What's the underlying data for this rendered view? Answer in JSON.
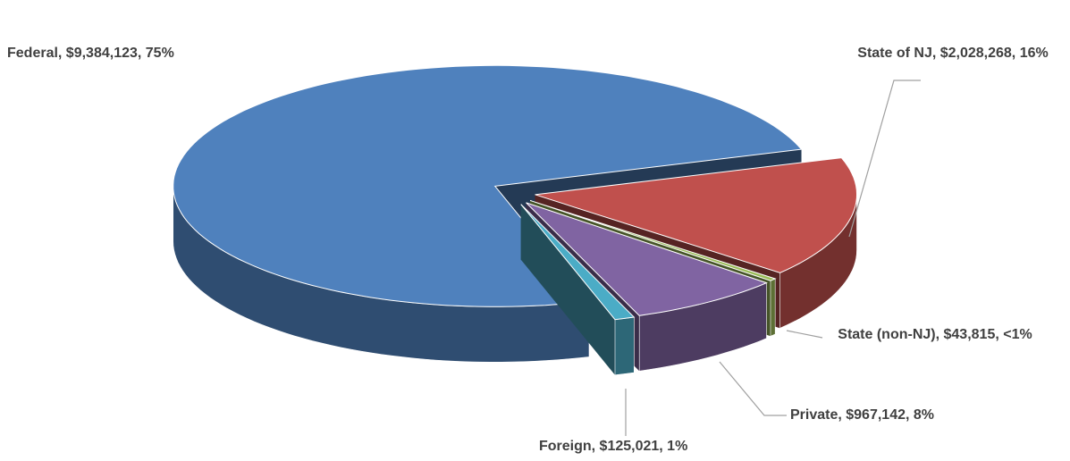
{
  "chart_data": {
    "type": "pie3d",
    "categories": [
      "Federal",
      "State of NJ",
      "State (non-NJ)",
      "Private",
      "Foreign"
    ],
    "values": [
      9384123,
      2028268,
      43815,
      967142,
      125021
    ],
    "value_labels": [
      "Federal, $9,384,123, 75%",
      "State of NJ, $2,028,268, 16%",
      "State (non-NJ), $43,815, <1%",
      "Private, $967,142, 8%",
      "Foreign, $125,021, 1%"
    ],
    "colors": [
      "#4f81bd",
      "#c0504d",
      "#9bbb59",
      "#8064a2",
      "#4bacc6"
    ],
    "exploded": true
  }
}
